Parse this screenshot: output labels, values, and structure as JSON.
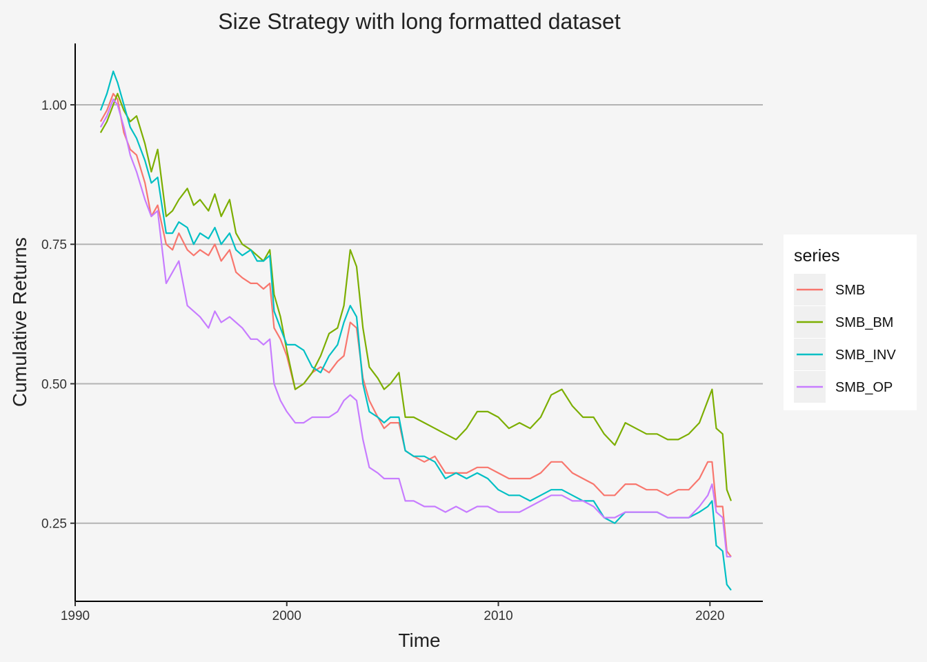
{
  "chart_data": {
    "type": "line",
    "title": "Size Strategy with long formatted dataset",
    "xlabel": "Time",
    "ylabel": "Cumulative Returns",
    "xlim": [
      1990,
      2022.5
    ],
    "ylim": [
      0.11,
      1.11
    ],
    "x_ticks": [
      1990,
      2000,
      2010,
      2020
    ],
    "x_tick_labels": [
      "1990",
      "2000",
      "2010",
      "2020"
    ],
    "y_ticks": [
      0.25,
      0.5,
      0.75,
      1.0
    ],
    "y_tick_labels": [
      "0.25",
      "0.50",
      "0.75",
      "1.00"
    ],
    "grid": "horizontal major lines",
    "legend": {
      "title": "series",
      "position": "right"
    },
    "series": [
      {
        "name": "SMB",
        "color": "#F8766D",
        "x": [
          1991.2,
          1991.5,
          1991.8,
          1992.0,
          1992.3,
          1992.6,
          1992.9,
          1993.3,
          1993.6,
          1993.9,
          1994.3,
          1994.6,
          1994.9,
          1995.3,
          1995.6,
          1995.9,
          1996.3,
          1996.6,
          1996.9,
          1997.3,
          1997.6,
          1997.9,
          1998.3,
          1998.6,
          1998.9,
          1999.2,
          1999.4,
          1999.7,
          2000.0,
          2000.4,
          2000.8,
          2001.2,
          2001.6,
          2002.0,
          2002.4,
          2002.7,
          2003.0,
          2003.3,
          2003.6,
          2003.9,
          2004.3,
          2004.6,
          2004.9,
          2005.3,
          2005.6,
          2006.0,
          2006.5,
          2007.0,
          2007.5,
          2008.0,
          2008.5,
          2009.0,
          2009.5,
          2010.0,
          2010.5,
          2011.0,
          2011.5,
          2012.0,
          2012.5,
          2013.0,
          2013.5,
          2014.0,
          2014.5,
          2015.0,
          2015.5,
          2016.0,
          2016.5,
          2017.0,
          2017.5,
          2018.0,
          2018.5,
          2019.0,
          2019.5,
          2019.9,
          2020.1,
          2020.3,
          2020.6,
          2020.8,
          2021.0
        ],
        "y": [
          0.97,
          0.99,
          1.02,
          1.01,
          0.95,
          0.92,
          0.91,
          0.86,
          0.8,
          0.82,
          0.75,
          0.74,
          0.77,
          0.74,
          0.73,
          0.74,
          0.73,
          0.75,
          0.72,
          0.74,
          0.7,
          0.69,
          0.68,
          0.68,
          0.67,
          0.68,
          0.6,
          0.58,
          0.55,
          0.49,
          0.5,
          0.52,
          0.53,
          0.52,
          0.54,
          0.55,
          0.61,
          0.6,
          0.51,
          0.47,
          0.44,
          0.42,
          0.43,
          0.43,
          0.38,
          0.37,
          0.36,
          0.37,
          0.34,
          0.34,
          0.34,
          0.35,
          0.35,
          0.34,
          0.33,
          0.33,
          0.33,
          0.34,
          0.36,
          0.36,
          0.34,
          0.33,
          0.32,
          0.3,
          0.3,
          0.32,
          0.32,
          0.31,
          0.31,
          0.3,
          0.31,
          0.31,
          0.33,
          0.36,
          0.36,
          0.28,
          0.28,
          0.2,
          0.19
        ]
      },
      {
        "name": "SMB_BM",
        "color": "#7CAE00",
        "x": [
          1991.2,
          1991.5,
          1991.8,
          1992.0,
          1992.3,
          1992.6,
          1992.9,
          1993.3,
          1993.6,
          1993.9,
          1994.3,
          1994.6,
          1994.9,
          1995.3,
          1995.6,
          1995.9,
          1996.3,
          1996.6,
          1996.9,
          1997.3,
          1997.6,
          1997.9,
          1998.3,
          1998.6,
          1998.9,
          1999.2,
          1999.4,
          1999.7,
          2000.0,
          2000.4,
          2000.8,
          2001.2,
          2001.6,
          2002.0,
          2002.4,
          2002.7,
          2003.0,
          2003.3,
          2003.6,
          2003.9,
          2004.3,
          2004.6,
          2004.9,
          2005.3,
          2005.6,
          2006.0,
          2006.5,
          2007.0,
          2007.5,
          2008.0,
          2008.5,
          2009.0,
          2009.5,
          2010.0,
          2010.5,
          2011.0,
          2011.5,
          2012.0,
          2012.5,
          2013.0,
          2013.5,
          2014.0,
          2014.5,
          2015.0,
          2015.5,
          2016.0,
          2016.5,
          2017.0,
          2017.5,
          2018.0,
          2018.5,
          2019.0,
          2019.5,
          2019.9,
          2020.1,
          2020.3,
          2020.6,
          2020.8,
          2021.0
        ],
        "y": [
          0.95,
          0.97,
          1.0,
          1.02,
          0.99,
          0.97,
          0.98,
          0.93,
          0.88,
          0.92,
          0.8,
          0.81,
          0.83,
          0.85,
          0.82,
          0.83,
          0.81,
          0.84,
          0.8,
          0.83,
          0.77,
          0.75,
          0.74,
          0.73,
          0.72,
          0.74,
          0.66,
          0.62,
          0.56,
          0.49,
          0.5,
          0.52,
          0.55,
          0.59,
          0.6,
          0.64,
          0.74,
          0.71,
          0.6,
          0.53,
          0.51,
          0.49,
          0.5,
          0.52,
          0.44,
          0.44,
          0.43,
          0.42,
          0.41,
          0.4,
          0.42,
          0.45,
          0.45,
          0.44,
          0.42,
          0.43,
          0.42,
          0.44,
          0.48,
          0.49,
          0.46,
          0.44,
          0.44,
          0.41,
          0.39,
          0.43,
          0.42,
          0.41,
          0.41,
          0.4,
          0.4,
          0.41,
          0.43,
          0.47,
          0.49,
          0.42,
          0.41,
          0.31,
          0.29
        ]
      },
      {
        "name": "SMB_INV",
        "color": "#00BFC4",
        "x": [
          1991.2,
          1991.5,
          1991.8,
          1992.0,
          1992.3,
          1992.6,
          1992.9,
          1993.3,
          1993.6,
          1993.9,
          1994.3,
          1994.6,
          1994.9,
          1995.3,
          1995.6,
          1995.9,
          1996.3,
          1996.6,
          1996.9,
          1997.3,
          1997.6,
          1997.9,
          1998.3,
          1998.6,
          1998.9,
          1999.2,
          1999.4,
          1999.7,
          2000.0,
          2000.4,
          2000.8,
          2001.2,
          2001.6,
          2002.0,
          2002.4,
          2002.7,
          2003.0,
          2003.3,
          2003.6,
          2003.9,
          2004.3,
          2004.6,
          2004.9,
          2005.3,
          2005.6,
          2006.0,
          2006.5,
          2007.0,
          2007.5,
          2008.0,
          2008.5,
          2009.0,
          2009.5,
          2010.0,
          2010.5,
          2011.0,
          2011.5,
          2012.0,
          2012.5,
          2013.0,
          2013.5,
          2014.0,
          2014.5,
          2015.0,
          2015.5,
          2016.0,
          2016.5,
          2017.0,
          2017.5,
          2018.0,
          2018.5,
          2019.0,
          2019.5,
          2019.9,
          2020.1,
          2020.3,
          2020.6,
          2020.8,
          2021.0
        ],
        "y": [
          0.99,
          1.02,
          1.06,
          1.04,
          1.0,
          0.96,
          0.94,
          0.9,
          0.86,
          0.87,
          0.77,
          0.77,
          0.79,
          0.78,
          0.75,
          0.77,
          0.76,
          0.78,
          0.75,
          0.77,
          0.74,
          0.73,
          0.74,
          0.72,
          0.72,
          0.73,
          0.63,
          0.6,
          0.57,
          0.57,
          0.56,
          0.53,
          0.52,
          0.55,
          0.57,
          0.61,
          0.64,
          0.62,
          0.5,
          0.45,
          0.44,
          0.43,
          0.44,
          0.44,
          0.38,
          0.37,
          0.37,
          0.36,
          0.33,
          0.34,
          0.33,
          0.34,
          0.33,
          0.31,
          0.3,
          0.3,
          0.29,
          0.3,
          0.31,
          0.31,
          0.3,
          0.29,
          0.29,
          0.26,
          0.25,
          0.27,
          0.27,
          0.27,
          0.27,
          0.26,
          0.26,
          0.26,
          0.27,
          0.28,
          0.29,
          0.21,
          0.2,
          0.14,
          0.13
        ]
      },
      {
        "name": "SMB_OP",
        "color": "#C77CFF",
        "x": [
          1991.2,
          1991.5,
          1991.8,
          1992.0,
          1992.3,
          1992.6,
          1992.9,
          1993.3,
          1993.6,
          1993.9,
          1994.3,
          1994.6,
          1994.9,
          1995.3,
          1995.6,
          1995.9,
          1996.3,
          1996.6,
          1996.9,
          1997.3,
          1997.6,
          1997.9,
          1998.3,
          1998.6,
          1998.9,
          1999.2,
          1999.4,
          1999.7,
          2000.0,
          2000.4,
          2000.8,
          2001.2,
          2001.6,
          2002.0,
          2002.4,
          2002.7,
          2003.0,
          2003.3,
          2003.6,
          2003.9,
          2004.3,
          2004.6,
          2004.9,
          2005.3,
          2005.6,
          2006.0,
          2006.5,
          2007.0,
          2007.5,
          2008.0,
          2008.5,
          2009.0,
          2009.5,
          2010.0,
          2010.5,
          2011.0,
          2011.5,
          2012.0,
          2012.5,
          2013.0,
          2013.5,
          2014.0,
          2014.5,
          2015.0,
          2015.5,
          2016.0,
          2016.5,
          2017.0,
          2017.5,
          2018.0,
          2018.5,
          2019.0,
          2019.5,
          2019.9,
          2020.1,
          2020.3,
          2020.6,
          2020.8,
          2021.0
        ],
        "y": [
          0.96,
          0.98,
          1.01,
          1.0,
          0.96,
          0.91,
          0.88,
          0.83,
          0.8,
          0.81,
          0.68,
          0.7,
          0.72,
          0.64,
          0.63,
          0.62,
          0.6,
          0.63,
          0.61,
          0.62,
          0.61,
          0.6,
          0.58,
          0.58,
          0.57,
          0.58,
          0.5,
          0.47,
          0.45,
          0.43,
          0.43,
          0.44,
          0.44,
          0.44,
          0.45,
          0.47,
          0.48,
          0.47,
          0.4,
          0.35,
          0.34,
          0.33,
          0.33,
          0.33,
          0.29,
          0.29,
          0.28,
          0.28,
          0.27,
          0.28,
          0.27,
          0.28,
          0.28,
          0.27,
          0.27,
          0.27,
          0.28,
          0.29,
          0.3,
          0.3,
          0.29,
          0.29,
          0.28,
          0.26,
          0.26,
          0.27,
          0.27,
          0.27,
          0.27,
          0.26,
          0.26,
          0.26,
          0.28,
          0.3,
          0.32,
          0.27,
          0.26,
          0.19,
          0.19
        ]
      }
    ]
  }
}
